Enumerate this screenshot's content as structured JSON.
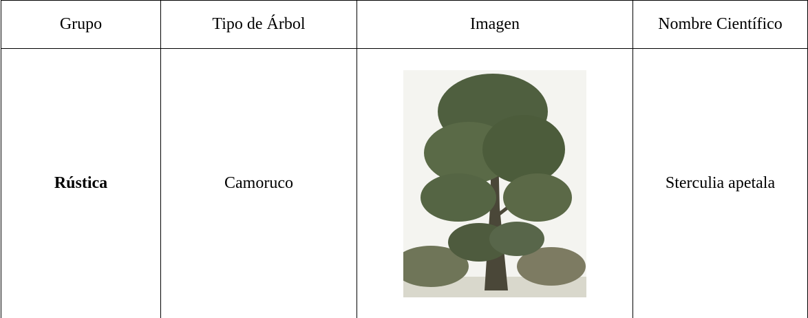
{
  "table": {
    "headers": [
      "Grupo",
      "Tipo de Árbol",
      "Imagen",
      "Nombre Científico"
    ],
    "rows": [
      {
        "group": "Rústica",
        "tree": "Camoruco",
        "scientific": "Sterculia apetala"
      }
    ]
  }
}
